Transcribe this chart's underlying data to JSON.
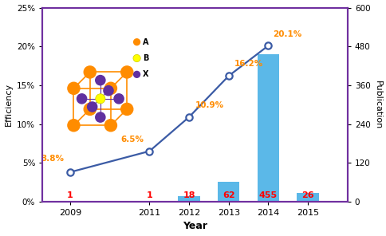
{
  "years": [
    2009,
    2011,
    2012,
    2013,
    2014,
    2015
  ],
  "line_years": [
    2009,
    2011,
    2012,
    2013,
    2014
  ],
  "line_efficiencies": [
    3.8,
    6.5,
    10.9,
    16.2,
    20.1
  ],
  "publications": [
    1,
    1,
    18,
    62,
    455,
    26
  ],
  "pub_labels": [
    "1",
    "1",
    "18",
    "62",
    "455",
    "26"
  ],
  "eff_labels": [
    "3.8%",
    "6.5%",
    "10.9%",
    "16.2%",
    "20.1%"
  ],
  "eff_label_positions": [
    [
      2009,
      3.8,
      "right",
      -0.15,
      1.2
    ],
    [
      2011,
      6.5,
      "right",
      -0.15,
      1.0
    ],
    [
      2012,
      10.9,
      "left",
      0.15,
      1.0
    ],
    [
      2013,
      16.2,
      "left",
      0.15,
      1.0
    ],
    [
      2014,
      20.1,
      "left",
      0.12,
      1.0
    ]
  ],
  "bar_color": "#5BB8E8",
  "line_color": "#3B5BA5",
  "eff_label_color": "#FF8C00",
  "pub_label_color": "#FF0000",
  "ylabel_left": "Efficiency",
  "ylabel_right": "Publication",
  "xlabel": "Year",
  "ylim_left": [
    0,
    25
  ],
  "ylim_right": [
    0,
    600
  ],
  "yticks_left": [
    0,
    5,
    10,
    15,
    20,
    25
  ],
  "ytick_labels_left": [
    "0%",
    "5%",
    "10%",
    "15%",
    "20%",
    "25%"
  ],
  "yticks_right": [
    0,
    120,
    240,
    360,
    480,
    600
  ],
  "spine_color": "#7030A0",
  "orange": "#FF8C00",
  "purple": "#6030A0",
  "yellow": "#FFFF00",
  "figsize": [
    4.84,
    2.96
  ],
  "dpi": 100
}
